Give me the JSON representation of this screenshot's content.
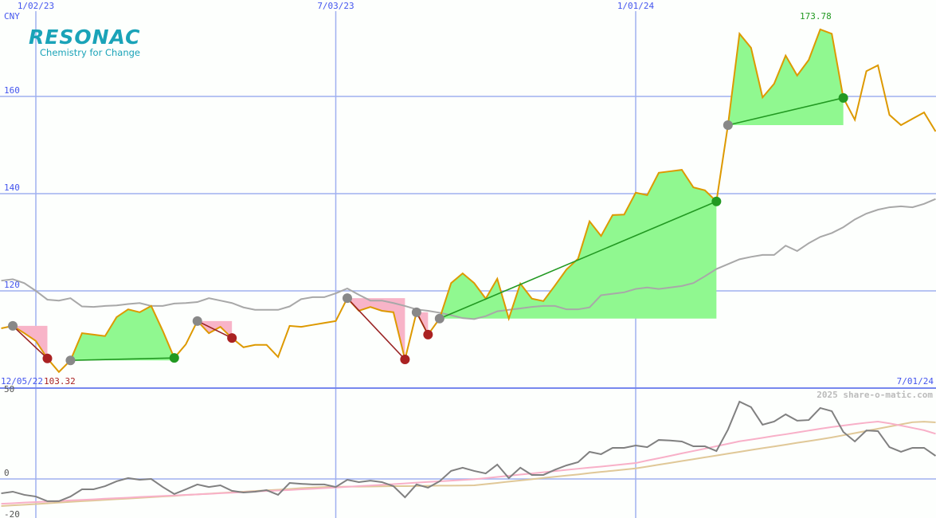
{
  "chart_data": [
    {
      "type": "line",
      "currency": "CNY",
      "ylim": [
        100,
        180
      ],
      "yticks": [
        120,
        140,
        160
      ],
      "x_tick_labels": [
        "1/02/23",
        "7/03/23",
        "1/01/24"
      ],
      "x_tick_dates": [
        "2023-01-02",
        "2023-07-03",
        "2024-01-01"
      ],
      "start_label": "12/05/22",
      "end_label": "7/01/24",
      "min_label": "103.32",
      "max_label": "173.78",
      "grid": true,
      "colors": {
        "price": "#dd9900",
        "average": "#a8a8a8",
        "gain_fill": "#90f890",
        "loss_fill": "#f8b4c8",
        "gain_line": "#229922",
        "loss_line": "#992222",
        "start_dot": "#888888",
        "gain_dot": "#229922",
        "loss_dot": "#aa2222",
        "grid": "#a0b0f0",
        "axis_text": "#4455ee"
      },
      "dates": [
        "2022-12-12",
        "2022-12-19",
        "2022-12-26",
        "2023-01-02",
        "2023-01-09",
        "2023-01-16",
        "2023-01-23",
        "2023-01-30",
        "2023-02-06",
        "2023-02-13",
        "2023-02-20",
        "2023-02-27",
        "2023-03-06",
        "2023-03-13",
        "2023-03-20",
        "2023-03-27",
        "2023-04-03",
        "2023-04-10",
        "2023-04-17",
        "2023-04-24",
        "2023-05-01",
        "2023-05-08",
        "2023-05-15",
        "2023-05-22",
        "2023-05-29",
        "2023-06-05",
        "2023-06-12",
        "2023-06-19",
        "2023-06-26",
        "2023-07-03",
        "2023-07-10",
        "2023-07-17",
        "2023-07-24",
        "2023-07-31",
        "2023-08-07",
        "2023-08-14",
        "2023-08-21",
        "2023-08-28",
        "2023-09-04",
        "2023-09-11",
        "2023-09-18",
        "2023-09-25",
        "2023-10-02",
        "2023-10-09",
        "2023-10-16",
        "2023-10-23",
        "2023-10-30",
        "2023-11-06",
        "2023-11-13",
        "2023-11-20",
        "2023-11-27",
        "2023-12-04",
        "2023-12-11",
        "2023-12-18",
        "2023-12-25",
        "2024-01-01",
        "2024-01-08",
        "2024-01-15",
        "2024-01-22",
        "2024-01-29",
        "2024-02-05",
        "2024-02-12",
        "2024-02-19",
        "2024-02-26",
        "2024-03-04",
        "2024-03-11",
        "2024-03-18",
        "2024-03-25",
        "2024-04-01",
        "2024-04-08",
        "2024-04-15",
        "2024-04-22",
        "2024-04-29",
        "2024-05-06",
        "2024-05-13",
        "2024-05-20",
        "2024-05-27",
        "2024-06-03",
        "2024-06-10",
        "2024-06-17",
        "2024-06-24",
        "2024-07-01"
      ],
      "series": [
        {
          "key": "price",
          "values": [
            112.3,
            112.8,
            111.3,
            109.7,
            106.1,
            103.32,
            105.7,
            111.3,
            111.0,
            110.7,
            114.6,
            116.2,
            115.6,
            116.9,
            111.8,
            106.2,
            109.0,
            113.8,
            111.3,
            112.6,
            110.3,
            108.4,
            108.9,
            108.9,
            106.4,
            112.8,
            112.6,
            113.0,
            113.4,
            113.8,
            118.5,
            115.9,
            116.7,
            115.9,
            115.6,
            105.9,
            115.6,
            111.0,
            114.3,
            121.6,
            123.6,
            121.6,
            118.4,
            122.5,
            114.3,
            121.5,
            118.4,
            117.9,
            121.1,
            124.4,
            126.6,
            134.3,
            131.3,
            135.6,
            135.7,
            140.2,
            139.7,
            144.3,
            144.6,
            144.9,
            141.3,
            140.7,
            138.4,
            154.1,
            172.9,
            170.0,
            159.8,
            162.6,
            168.4,
            164.3,
            167.5,
            173.78,
            172.9,
            159.7,
            155.2,
            165.2,
            166.4,
            156.2,
            154.1,
            155.4,
            156.7,
            152.8
          ]
        },
        {
          "key": "average",
          "values": [
            122.1,
            122.4,
            121.6,
            120.0,
            118.2,
            118.0,
            118.5,
            116.8,
            116.7,
            116.9,
            117.0,
            117.3,
            117.5,
            116.9,
            116.9,
            117.4,
            117.5,
            117.7,
            118.5,
            118.0,
            117.5,
            116.6,
            116.1,
            116.1,
            116.1,
            116.8,
            118.3,
            118.7,
            118.7,
            119.5,
            120.5,
            119.2,
            118.0,
            118.0,
            117.5,
            116.9,
            116.2,
            115.9,
            115.5,
            115.0,
            114.4,
            114.2,
            114.8,
            115.8,
            116.1,
            116.4,
            116.7,
            116.9,
            116.9,
            116.2,
            116.2,
            116.6,
            119.1,
            119.4,
            119.7,
            120.4,
            120.7,
            120.4,
            120.7,
            121.0,
            121.6,
            123.0,
            124.5,
            125.5,
            126.5,
            127.0,
            127.4,
            127.4,
            129.3,
            128.2,
            129.8,
            131.1,
            131.9,
            133.1,
            134.7,
            135.9,
            136.7,
            137.2,
            137.4,
            137.2,
            137.9,
            138.9
          ]
        }
      ],
      "trades": [
        {
          "start": 1,
          "end": 4,
          "result": "loss"
        },
        {
          "start": 6,
          "end": 15,
          "result": "gain"
        },
        {
          "start": 17,
          "end": 20,
          "result": "loss"
        },
        {
          "start": 30,
          "end": 35,
          "result": "loss"
        },
        {
          "start": 36,
          "end": 37,
          "result": "loss"
        },
        {
          "start": 38,
          "end": 62,
          "result": "gain"
        },
        {
          "start": 63,
          "end": 73,
          "result": "gain"
        }
      ]
    },
    {
      "type": "line",
      "ylim": [
        -23,
        55
      ],
      "yticks": [
        50,
        0,
        -20
      ],
      "ytick_labels": [
        "50",
        "0",
        "-20"
      ],
      "grid": true,
      "colors": {
        "momentum": "#808080",
        "fast": "#f8b0c8",
        "slow": "#e0c898"
      },
      "series": [
        {
          "key": "momentum",
          "values": [
            -8.6,
            -7.6,
            -9.5,
            -10.5,
            -13.3,
            -13.3,
            -10.5,
            -6.2,
            -6.2,
            -4.3,
            -1.4,
            0.5,
            -0.5,
            0,
            -4.8,
            -9.0,
            -6.2,
            -3.3,
            -4.8,
            -3.8,
            -7.1,
            -8.1,
            -7.6,
            -6.7,
            -9.5,
            -2.4,
            -2.9,
            -3.3,
            -3.3,
            -4.8,
            -0.5,
            -1.9,
            -1.0,
            -1.9,
            -4.3,
            -11.0,
            -3.3,
            -5.2,
            -1.4,
            4.8,
            6.7,
            4.8,
            3.3,
            8.6,
            0.5,
            6.7,
            2.4,
            2.4,
            5.5,
            8.1,
            10.0,
            16.2,
            14.8,
            18.6,
            18.6,
            20.0,
            19.0,
            23.3,
            23.0,
            22.4,
            19.5,
            19.5,
            16.7,
            29.5,
            46.2,
            42.9,
            32.4,
            34.3,
            38.6,
            34.8,
            35.2,
            42.4,
            40.5,
            28.1,
            22.4,
            29.0,
            28.6,
            19.0,
            16.2,
            18.6,
            18.6,
            13.8
          ]
        },
        {
          "key": "fast",
          "values": [
            -14.8,
            -14.5,
            -14.1,
            -13.8,
            -13.5,
            -13.2,
            -12.8,
            -12.5,
            -12.2,
            -11.8,
            -11.5,
            -11.2,
            -10.8,
            -10.5,
            -10.2,
            -9.9,
            -9.5,
            -9.2,
            -8.9,
            -8.5,
            -8.2,
            -7.9,
            -7.5,
            -7.2,
            -6.9,
            -6.6,
            -6.2,
            -5.9,
            -5.5,
            -5.1,
            -4.7,
            -4.3,
            -3.9,
            -3.5,
            -3.1,
            -2.7,
            -2.2,
            -1.8,
            -1.4,
            -1.0,
            -0.6,
            -0.2,
            0.5,
            1.2,
            1.9,
            2.6,
            3.3,
            4.0,
            4.7,
            5.4,
            6.1,
            6.8,
            7.4,
            8.1,
            8.8,
            9.5,
            11.0,
            12.4,
            13.8,
            15.3,
            16.7,
            18.1,
            19.6,
            21.0,
            22.5,
            23.5,
            24.6,
            25.7,
            26.7,
            27.8,
            28.9,
            30.0,
            31.0,
            31.9,
            32.8,
            33.6,
            34.3,
            33.2,
            31.9,
            30.5,
            29.1,
            27.0
          ]
        },
        {
          "key": "slow",
          "values": [
            -16.2,
            -15.8,
            -15.4,
            -15.0,
            -14.6,
            -14.1,
            -13.7,
            -13.3,
            -12.9,
            -12.5,
            -12.1,
            -11.7,
            -11.3,
            -10.9,
            -10.5,
            -10.1,
            -9.6,
            -9.2,
            -8.8,
            -8.4,
            -8.0,
            -7.6,
            -7.2,
            -6.8,
            -6.4,
            -6.0,
            -5.5,
            -5.1,
            -4.8,
            -4.7,
            -4.6,
            -4.6,
            -4.5,
            -4.4,
            -4.3,
            -4.3,
            -4.2,
            -4.1,
            -4.0,
            -4.0,
            -3.9,
            -3.8,
            -3.1,
            -2.4,
            -1.6,
            -0.9,
            -0.2,
            0.6,
            1.3,
            2.0,
            2.7,
            3.5,
            4.2,
            4.9,
            5.6,
            6.3,
            7.4,
            8.5,
            9.6,
            10.7,
            11.8,
            12.9,
            14.0,
            15.1,
            16.2,
            17.3,
            18.4,
            19.4,
            20.5,
            21.6,
            22.6,
            23.7,
            24.8,
            26.1,
            27.4,
            28.7,
            30.0,
            31.3,
            32.6,
            33.9,
            34.2,
            33.8
          ]
        }
      ]
    }
  ],
  "logo": {
    "name": "RESONAC",
    "tagline": "Chemistry for Change"
  },
  "watermark": "2025 share-o-matic.com"
}
